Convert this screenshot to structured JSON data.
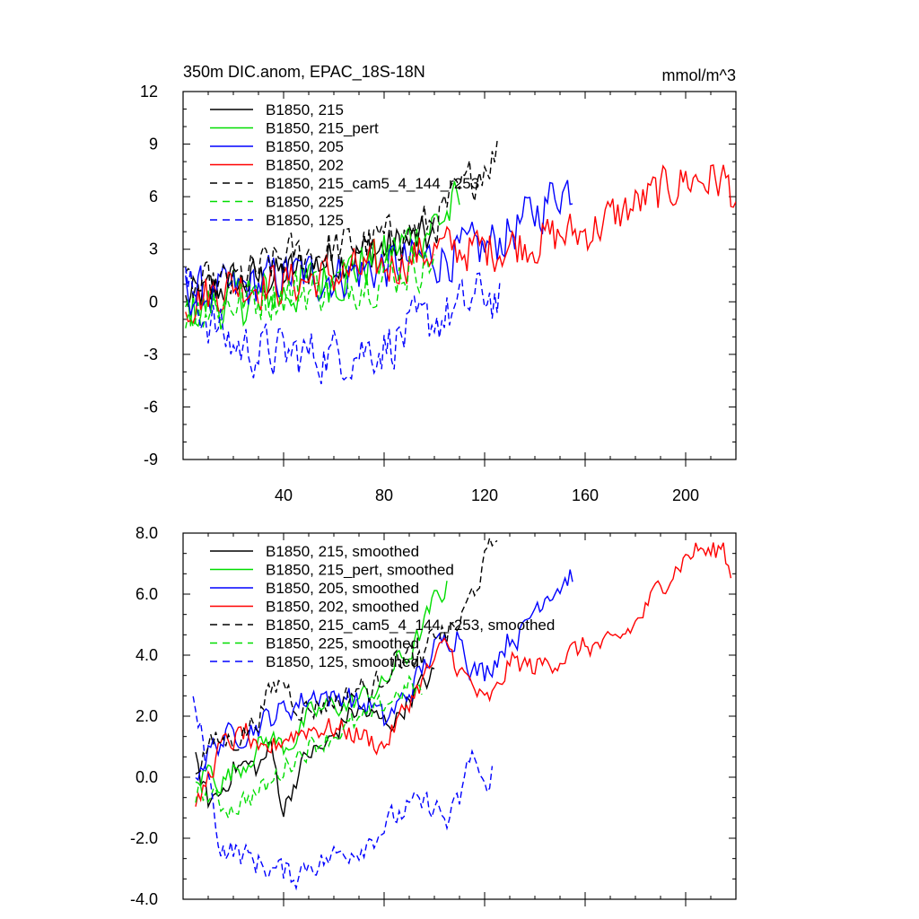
{
  "figure": {
    "title_left": "350m DIC.anom, EPAC_18S-18N",
    "title_right": "mmol/m^3"
  },
  "chart_data": [
    {
      "type": "line",
      "panel": "top",
      "title": "350m DIC.anom, EPAC_18S-18N",
      "units": "mmol/m^3",
      "xlim": [
        0,
        220
      ],
      "ylim": [
        -9,
        12
      ],
      "x_ticks": [
        40,
        80,
        120,
        160,
        200
      ],
      "x_tick_labels": [
        "40",
        "80",
        "120",
        "160",
        "200"
      ],
      "y_ticks": [
        -9,
        -6,
        -3,
        0,
        3,
        6,
        9,
        12
      ],
      "y_tick_labels": [
        "-9",
        "-6",
        "-3",
        "0",
        "3",
        "6",
        "9",
        "12"
      ],
      "legend_position": "top-left",
      "series": [
        {
          "name": "B1850, 215",
          "color": "#000000",
          "dash": "solid",
          "noise": 1.2,
          "x": [
            1,
            20,
            40,
            60,
            80,
            95,
            100
          ],
          "y": [
            0.0,
            1.0,
            1.5,
            2.5,
            3.0,
            3.5,
            3.8
          ]
        },
        {
          "name": "B1850, 215_pert",
          "color": "#00dd00",
          "dash": "solid",
          "noise": 1.4,
          "x": [
            1,
            20,
            40,
            60,
            80,
            100,
            110
          ],
          "y": [
            -0.5,
            0.0,
            0.5,
            1.5,
            2.5,
            4.5,
            5.5
          ]
        },
        {
          "name": "B1850, 205",
          "color": "#0000ff",
          "dash": "solid",
          "noise": 1.3,
          "x": [
            1,
            20,
            40,
            60,
            80,
            100,
            120,
            140,
            150,
            155
          ],
          "y": [
            0.5,
            0.5,
            1.5,
            1.5,
            2.0,
            2.5,
            3.0,
            5.0,
            6.5,
            6.5
          ]
        },
        {
          "name": "B1850, 202",
          "color": "#ff0000",
          "dash": "solid",
          "noise": 1.2,
          "x": [
            1,
            20,
            40,
            60,
            80,
            100,
            120,
            140,
            160,
            180,
            200,
            215,
            220
          ],
          "y": [
            0.0,
            1.0,
            1.0,
            1.5,
            2.0,
            3.0,
            3.0,
            3.5,
            4.0,
            5.5,
            7.0,
            7.0,
            6.0
          ]
        },
        {
          "name": "B1850, 215_cam5_4_144_r253",
          "color": "#000000",
          "dash": "dashed",
          "noise": 1.2,
          "x": [
            1,
            20,
            40,
            60,
            80,
            100,
            110,
            120,
            125
          ],
          "y": [
            0.5,
            1.0,
            2.5,
            3.0,
            3.5,
            4.5,
            6.0,
            8.0,
            8.5
          ]
        },
        {
          "name": "B1850, 225",
          "color": "#00dd00",
          "dash": "dashed",
          "noise": 1.3,
          "x": [
            1,
            20,
            40,
            60,
            80,
            90,
            100
          ],
          "y": [
            -0.5,
            0.0,
            0.5,
            1.0,
            1.5,
            2.0,
            2.5
          ]
        },
        {
          "name": "B1850, 125",
          "color": "#0000ff",
          "dash": "dashed",
          "noise": 1.4,
          "x": [
            1,
            10,
            20,
            40,
            60,
            80,
            100,
            110,
            120,
            126
          ],
          "y": [
            1.0,
            -1.0,
            -2.5,
            -3.0,
            -3.0,
            -2.5,
            -1.0,
            -0.5,
            0.5,
            0.0
          ]
        }
      ]
    },
    {
      "type": "line",
      "panel": "bottom",
      "xlim": [
        0,
        220
      ],
      "ylim": [
        -4,
        8
      ],
      "x_ticks": [
        40,
        80,
        120,
        160,
        200
      ],
      "x_tick_labels": [],
      "y_ticks": [
        -4,
        -2,
        0,
        2,
        4,
        6,
        8
      ],
      "y_tick_labels": [
        "-4.0",
        "-2.0",
        "0.0",
        "2.0",
        "4.0",
        "6.0",
        "8.0"
      ],
      "legend_position": "top-left",
      "series": [
        {
          "name": "B1850, 215, smoothed",
          "color": "#000000",
          "dash": "solid",
          "noise": 0.35,
          "x": [
            5,
            10,
            15,
            20,
            25,
            30,
            35,
            40,
            45,
            50,
            55,
            60,
            65,
            70,
            75,
            80,
            85,
            90,
            95,
            100
          ],
          "y": [
            0.5,
            -0.8,
            -0.5,
            0.3,
            0.4,
            0.3,
            1.0,
            -1.1,
            0.0,
            0.8,
            0.9,
            1.3,
            2.0,
            2.2,
            2.0,
            1.8,
            1.9,
            2.6,
            3.0,
            3.4
          ]
        },
        {
          "name": "B1850, 215_pert, smoothed",
          "color": "#00dd00",
          "dash": "solid",
          "noise": 0.35,
          "x": [
            5,
            10,
            15,
            20,
            25,
            30,
            35,
            40,
            45,
            50,
            55,
            60,
            65,
            70,
            75,
            80,
            85,
            90,
            95,
            100,
            105
          ],
          "y": [
            -0.3,
            0.3,
            -0.2,
            0.2,
            0.5,
            1.0,
            1.3,
            1.0,
            1.3,
            2.0,
            2.2,
            2.4,
            2.3,
            2.6,
            2.8,
            3.0,
            3.8,
            4.0,
            4.8,
            5.8,
            6.2
          ]
        },
        {
          "name": "B1850, 205, smoothed",
          "color": "#0000ff",
          "dash": "solid",
          "noise": 0.4,
          "x": [
            5,
            10,
            15,
            20,
            25,
            30,
            35,
            40,
            45,
            50,
            55,
            60,
            65,
            70,
            75,
            80,
            90,
            100,
            110,
            115,
            120,
            125,
            130,
            135,
            140,
            145,
            150,
            155
          ],
          "y": [
            0.2,
            0.8,
            1.2,
            1.4,
            1.5,
            1.7,
            2.0,
            2.2,
            2.4,
            2.6,
            2.8,
            2.5,
            2.8,
            2.3,
            2.4,
            1.8,
            2.8,
            4.2,
            4.8,
            3.5,
            3.4,
            4.0,
            4.6,
            4.7,
            5.6,
            6.1,
            6.3,
            6.7
          ]
        },
        {
          "name": "B1850, 202, smoothed",
          "color": "#ff0000",
          "dash": "solid",
          "noise": 0.35,
          "x": [
            5,
            10,
            15,
            20,
            25,
            30,
            40,
            50,
            60,
            70,
            80,
            90,
            100,
            105,
            110,
            115,
            120,
            125,
            130,
            140,
            150,
            160,
            170,
            180,
            190,
            200,
            205,
            210,
            215,
            218
          ],
          "y": [
            -1.2,
            0.0,
            1.0,
            1.2,
            1.5,
            0.6,
            1.3,
            1.6,
            1.6,
            1.4,
            1.0,
            2.5,
            3.8,
            4.4,
            3.5,
            3.0,
            2.4,
            2.8,
            3.8,
            3.6,
            3.9,
            4.3,
            4.3,
            5.0,
            6.3,
            7.2,
            7.5,
            7.3,
            7.6,
            6.6
          ]
        },
        {
          "name": "B1850, 215_cam5_4_144_r253, smoothed",
          "color": "#000000",
          "dash": "dashed",
          "noise": 0.4,
          "x": [
            5,
            10,
            15,
            20,
            25,
            30,
            35,
            40,
            45,
            50,
            55,
            60,
            65,
            70,
            75,
            80,
            85,
            90,
            95,
            100,
            105,
            110,
            115,
            120,
            125
          ],
          "y": [
            0.3,
            1.0,
            1.2,
            1.2,
            1.5,
            2.0,
            2.8,
            3.2,
            2.4,
            2.2,
            2.4,
            2.5,
            2.6,
            3.0,
            2.8,
            3.4,
            3.9,
            4.0,
            3.6,
            4.8,
            4.7,
            5.0,
            6.0,
            7.0,
            7.9
          ]
        },
        {
          "name": "B1850, 225, smoothed",
          "color": "#00dd00",
          "dash": "dashed",
          "noise": 0.35,
          "x": [
            5,
            10,
            15,
            20,
            25,
            30,
            35,
            40,
            45,
            50,
            55,
            60,
            65,
            70,
            75,
            80,
            85,
            90,
            95
          ],
          "y": [
            -0.5,
            -0.6,
            -0.9,
            -1.0,
            -0.7,
            -0.5,
            -0.2,
            0.3,
            0.7,
            1.0,
            1.2,
            1.4,
            1.6,
            1.8,
            2.0,
            2.4,
            2.7,
            3.0,
            2.8
          ]
        },
        {
          "name": "B1850, 125, smoothed",
          "color": "#0000ff",
          "dash": "dashed",
          "noise": 0.4,
          "x": [
            4,
            8,
            12,
            15,
            20,
            25,
            30,
            35,
            40,
            45,
            50,
            55,
            60,
            65,
            70,
            75,
            80,
            85,
            90,
            95,
            100,
            105,
            110,
            115,
            120,
            123
          ],
          "y": [
            2.3,
            1.2,
            -1.0,
            -2.3,
            -2.4,
            -2.6,
            -2.8,
            -3.0,
            -3.1,
            -3.2,
            -2.8,
            -2.8,
            -2.6,
            -2.4,
            -2.3,
            -2.0,
            -1.6,
            -1.3,
            -1.0,
            -0.9,
            -0.9,
            -1.5,
            -0.8,
            0.9,
            -0.5,
            0.3
          ]
        }
      ]
    }
  ]
}
